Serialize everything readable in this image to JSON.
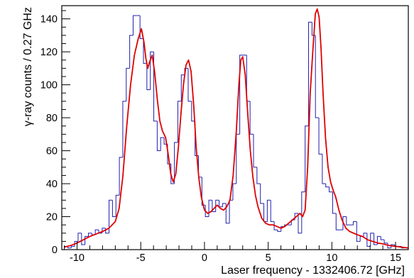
{
  "chart_data": {
    "type": "line",
    "xlabel": "Laser frequency - 1332406.72 [GHz]",
    "ylabel": "γ-ray counts / 0.27 GHz",
    "xlim": [
      -11.2,
      16.0
    ],
    "ylim": [
      0,
      148
    ],
    "x_ticks": [
      -10,
      -5,
      0,
      5,
      10,
      15
    ],
    "y_ticks": [
      0,
      20,
      40,
      60,
      80,
      100,
      120,
      140
    ],
    "grid": false,
    "legend": "none",
    "colors": {
      "histogram": "#1f1faf",
      "fit": "#e00000",
      "axis": "#000000"
    },
    "series": [
      {
        "kind": "histogram",
        "bin_width": 0.27,
        "x": [
          -11.0,
          -10.73,
          -10.46,
          -10.19,
          -9.92,
          -9.65,
          -9.38,
          -9.11,
          -8.84,
          -8.57,
          -8.3,
          -8.03,
          -7.76,
          -7.49,
          -7.22,
          -6.95,
          -6.68,
          -6.41,
          -6.14,
          -5.87,
          -5.6,
          -5.33,
          -5.06,
          -4.79,
          -4.52,
          -4.25,
          -3.98,
          -3.71,
          -3.44,
          -3.17,
          -2.9,
          -2.63,
          -2.36,
          -2.09,
          -1.82,
          -1.55,
          -1.28,
          -1.01,
          -0.74,
          -0.47,
          -0.2,
          0.07,
          0.34,
          0.61,
          0.88,
          1.15,
          1.42,
          1.69,
          1.96,
          2.23,
          2.5,
          2.77,
          3.04,
          3.31,
          3.58,
          3.85,
          4.12,
          4.39,
          4.66,
          4.93,
          5.2,
          5.47,
          5.74,
          6.01,
          6.28,
          6.55,
          6.82,
          7.09,
          7.36,
          7.63,
          7.9,
          8.17,
          8.44,
          8.71,
          8.98,
          9.25,
          9.52,
          9.79,
          10.06,
          10.33,
          10.6,
          10.87,
          11.14,
          11.41,
          11.68,
          11.95,
          12.22,
          12.49,
          12.76,
          13.03,
          13.3,
          13.57,
          13.84,
          14.11,
          14.38,
          14.65,
          14.92,
          15.19,
          15.46
        ],
        "values": [
          2,
          1,
          2,
          5,
          10,
          3,
          8,
          10,
          9,
          12,
          10,
          13,
          10,
          30,
          20,
          33,
          56,
          90,
          110,
          130,
          142,
          142,
          128,
          113,
          97,
          120,
          78,
          60,
          68,
          64,
          52,
          40,
          65,
          90,
          106,
          110,
          90,
          78,
          57,
          44,
          27,
          20,
          30,
          23,
          30,
          26,
          28,
          16,
          30,
          40,
          70,
          118,
          118,
          90,
          70,
          50,
          40,
          28,
          17,
          30,
          17,
          12,
          11,
          14,
          15,
          15,
          18,
          22,
          10,
          35,
          75,
          138,
          130,
          80,
          58,
          40,
          38,
          35,
          22,
          12,
          12,
          20,
          15,
          15,
          17,
          5,
          8,
          10,
          2,
          10,
          3,
          8,
          6,
          4,
          1,
          3,
          2,
          2,
          1
        ]
      },
      {
        "kind": "fit",
        "x": [
          -11.0,
          -10.5,
          -10.0,
          -9.5,
          -9.0,
          -8.5,
          -8.0,
          -7.5,
          -7.0,
          -6.7,
          -6.4,
          -6.1,
          -5.8,
          -5.5,
          -5.2,
          -4.95,
          -4.75,
          -4.6,
          -4.45,
          -4.3,
          -4.1,
          -3.9,
          -3.7,
          -3.5,
          -3.3,
          -3.05,
          -2.85,
          -2.65,
          -2.45,
          -2.25,
          -2.05,
          -1.85,
          -1.65,
          -1.45,
          -1.25,
          -1.05,
          -0.85,
          -0.65,
          -0.45,
          -0.25,
          0.0,
          0.25,
          0.5,
          0.75,
          1.0,
          1.25,
          1.5,
          1.75,
          2.0,
          2.25,
          2.5,
          2.7,
          2.85,
          3.0,
          3.2,
          3.4,
          3.6,
          3.8,
          4.0,
          4.2,
          4.5,
          4.8,
          5.1,
          5.4,
          5.7,
          6.0,
          6.3,
          6.6,
          6.9,
          7.2,
          7.5,
          7.7,
          7.9,
          8.1,
          8.3,
          8.5,
          8.7,
          8.85,
          9.0,
          9.15,
          9.3,
          9.5,
          9.7,
          9.9,
          10.1,
          10.3,
          10.55,
          10.8,
          11.1,
          11.4,
          11.7,
          12.0,
          12.4,
          12.8,
          13.2,
          13.6,
          14.0,
          14.5,
          15.0,
          15.5,
          16.0
        ],
        "values": [
          1.5,
          2.5,
          4,
          6,
          8,
          9.5,
          11,
          13,
          17,
          25,
          45,
          75,
          100,
          118,
          128,
          134,
          126,
          116,
          110,
          114,
          118,
          107,
          91,
          78,
          72,
          68,
          58,
          46,
          41,
          46,
          62,
          82,
          100,
          112,
          115,
          108,
          88,
          62,
          44,
          32,
          24,
          22,
          23,
          25,
          27,
          25,
          24,
          26,
          30,
          45,
          72,
          100,
          115,
          117,
          106,
          82,
          60,
          44,
          33,
          26,
          19,
          16,
          15,
          15,
          14,
          13,
          14,
          16,
          18,
          20,
          22,
          20,
          24,
          50,
          95,
          120,
          143,
          146,
          141,
          122,
          96,
          68,
          50,
          41,
          36,
          32,
          24,
          18,
          13,
          11,
          10,
          9,
          8,
          6,
          5,
          4,
          3.5,
          2.5,
          2,
          1.5,
          1
        ]
      }
    ]
  }
}
